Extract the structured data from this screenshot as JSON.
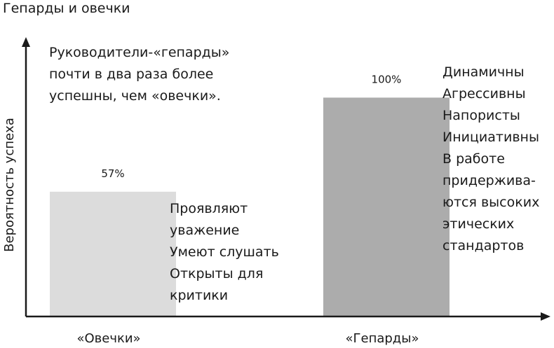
{
  "chart_data": {
    "type": "bar",
    "title": "Гепарды и овечки",
    "xlabel": "",
    "ylabel": "Вероятность успеха",
    "categories": [
      "«Овечки»",
      "«Гепарды»"
    ],
    "values": [
      57,
      100
    ],
    "data_labels": [
      "57%",
      "100%"
    ],
    "ylim": [
      0,
      127
    ],
    "colors": [
      "#dcdcdc",
      "#acacac"
    ],
    "axis_color": "#1a1a1a",
    "grid": false,
    "annotations": {
      "lead": [
        "Руководители-«гепарды»",
        "почти в два раза более",
        "успешны, чем «овечки»."
      ],
      "sheep_traits": [
        "Проявляют",
        "уважение",
        "Умеют слушать",
        "Открыты для",
        "критики"
      ],
      "cheetah_traits": [
        "Динамичны",
        "Агрессивны",
        "Напористы",
        "Инициативны",
        "В работе",
        "придержива-",
        "ются высоких",
        "этических",
        "стандартов"
      ]
    }
  }
}
